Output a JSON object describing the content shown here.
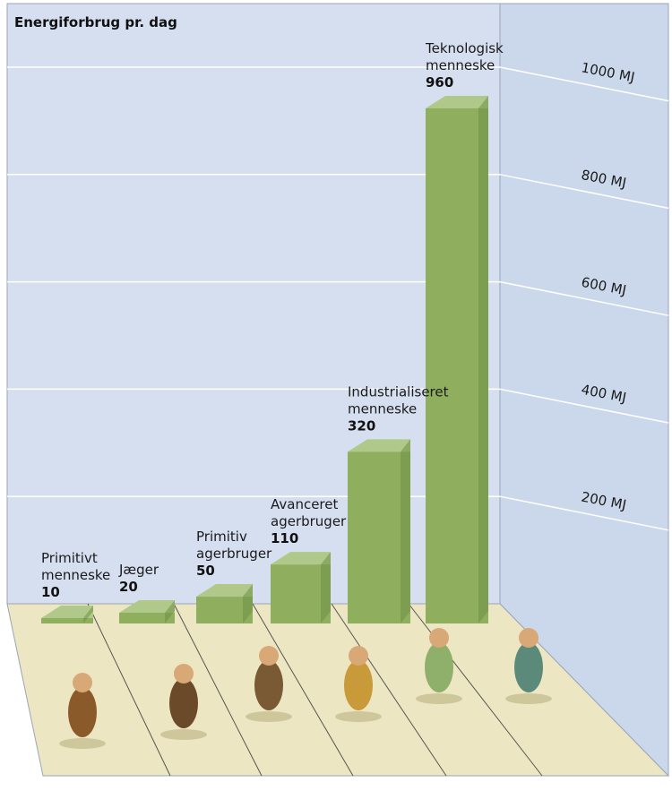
{
  "chart_data": {
    "type": "bar",
    "title": "Energiforbrug pr. dag",
    "categories": [
      [
        "Primitivt",
        "menneske"
      ],
      [
        "Jæger"
      ],
      [
        "Primitiv",
        "agerbruger"
      ],
      [
        "Avanceret",
        "agerbruger"
      ],
      [
        "Industrialiseret",
        "menneske"
      ],
      [
        "Teknologisk",
        "menneske"
      ]
    ],
    "values": [
      10,
      20,
      50,
      110,
      320,
      960
    ],
    "y_ticks": [
      200,
      400,
      600,
      800,
      1000
    ],
    "y_tick_unit": "MJ",
    "ylim": [
      0,
      1000
    ],
    "grid": true,
    "colors": {
      "back_wall": "#d6dff0",
      "side_wall": "#cbd8ec",
      "floor": "#ede6c2",
      "bar_front": "#8fae5e",
      "bar_top": "#b0c98a",
      "bar_side": "#6f8f45",
      "grid": "#ffffff"
    },
    "illustrations": [
      "ape-figure",
      "hunter-figure",
      "farmer-ox-figure",
      "windmill-horse-figure",
      "factory-worker-figure",
      "office-worker-figure"
    ]
  }
}
